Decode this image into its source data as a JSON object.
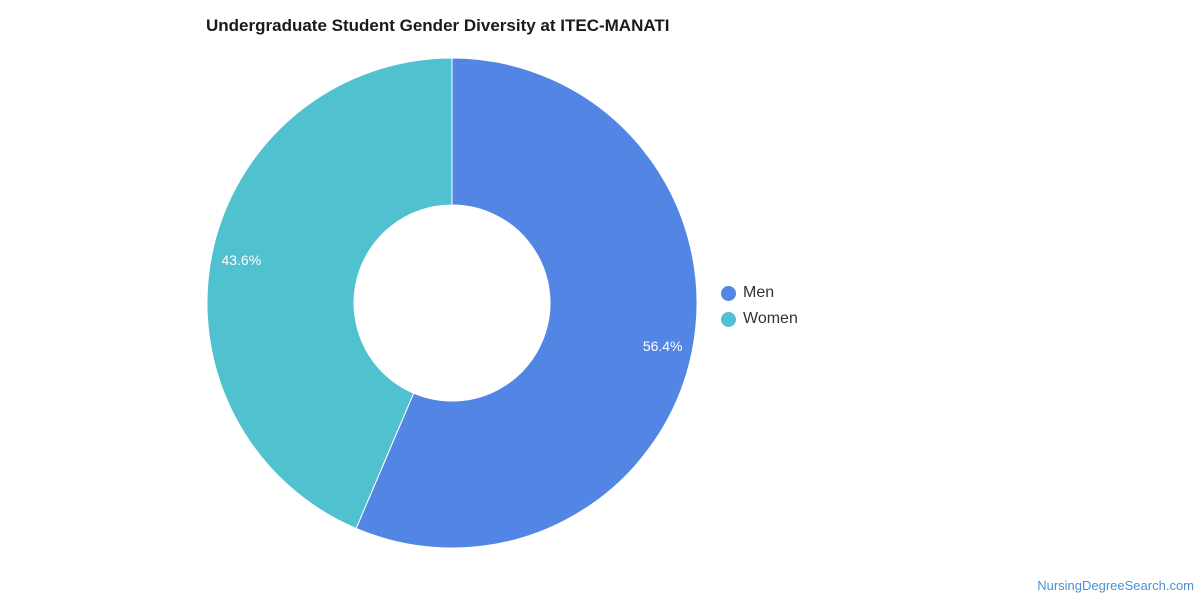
{
  "chart_data": {
    "type": "pie",
    "variant": "donut",
    "title": "Undergraduate Student Gender Diversity at ITEC-MANATI",
    "slices": [
      {
        "name": "Men",
        "value": 56.4,
        "label": "56.4%",
        "color": "#5386e4"
      },
      {
        "name": "Women",
        "value": 43.6,
        "label": "43.6%",
        "color": "#50c1ce"
      }
    ],
    "legend_placement": "right"
  },
  "watermark": "NursingDegreeSearch.com"
}
